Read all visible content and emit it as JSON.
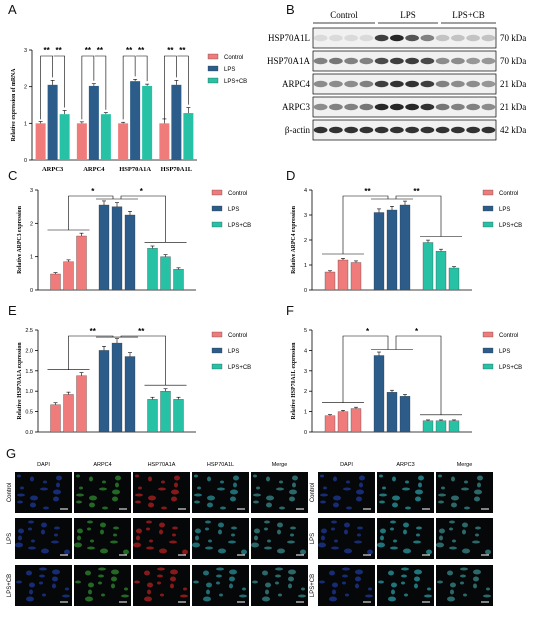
{
  "colors": {
    "control": "#f07b7b",
    "lps": "#2c5d8a",
    "lpscb": "#27c2a5"
  },
  "panels": {
    "a": "A",
    "b": "B",
    "c": "C",
    "d": "D",
    "e": "E",
    "f": "F",
    "g": "G"
  },
  "legend": [
    "Control",
    "LPS",
    "LPS+CB"
  ],
  "chart_data": [
    {
      "id": "A",
      "type": "bar",
      "ylabel": "Relative expression of mRNA",
      "ylim": [
        0,
        3
      ],
      "yticks": [
        "0",
        "1",
        "2",
        "3"
      ],
      "categories": [
        "ARPC3",
        "ARPC4",
        "HSP70A1A",
        "HSP70A1L"
      ],
      "series": [
        {
          "name": "Control",
          "values": [
            1.0,
            1.0,
            1.0,
            1.0
          ],
          "err": [
            0.05,
            0.04,
            0.03,
            0.12
          ]
        },
        {
          "name": "LPS",
          "values": [
            2.05,
            2.02,
            2.15,
            2.05
          ],
          "err": [
            0.12,
            0.06,
            0.05,
            0.12
          ]
        },
        {
          "name": "LPS+CB",
          "values": [
            1.25,
            1.25,
            2.02,
            1.28
          ],
          "err": [
            0.1,
            0.04,
            0.05,
            0.15
          ]
        }
      ],
      "sig": [
        "**",
        "**",
        "**",
        "**",
        "**",
        "**",
        "**",
        "**"
      ]
    },
    {
      "id": "C",
      "type": "bar",
      "ylabel": "Relative ARPC3 expression",
      "ylim": [
        0,
        3
      ],
      "yticks": [
        "0",
        "1",
        "2",
        "3"
      ],
      "series": [
        {
          "name": "Control",
          "values": [
            0.48,
            0.85,
            1.62
          ]
        },
        {
          "name": "LPS",
          "values": [
            2.55,
            2.5,
            2.25
          ]
        },
        {
          "name": "LPS+CB",
          "values": [
            1.25,
            1.0,
            0.62
          ]
        }
      ],
      "sig": [
        "*",
        "*"
      ]
    },
    {
      "id": "D",
      "type": "bar",
      "ylabel": "Relative ARPC4 expression",
      "ylim": [
        0,
        4
      ],
      "yticks": [
        "0",
        "1",
        "2",
        "3",
        "4"
      ],
      "series": [
        {
          "name": "Control",
          "values": [
            0.72,
            1.2,
            1.1
          ]
        },
        {
          "name": "LPS",
          "values": [
            3.1,
            3.2,
            3.4
          ]
        },
        {
          "name": "LPS+CB",
          "values": [
            1.9,
            1.55,
            0.88
          ]
        }
      ],
      "sig": [
        "**",
        "**"
      ]
    },
    {
      "id": "E",
      "type": "bar",
      "ylabel": "Relative HSP70A1A expression",
      "ylim": [
        0,
        2.5
      ],
      "yticks": [
        "0.0",
        "0.5",
        "1.0",
        "1.5",
        "2.0",
        "2.5"
      ],
      "series": [
        {
          "name": "Control",
          "values": [
            0.67,
            0.92,
            1.38
          ]
        },
        {
          "name": "LPS",
          "values": [
            2.0,
            2.18,
            1.85
          ]
        },
        {
          "name": "LPS+CB",
          "values": [
            0.8,
            1.0,
            0.8
          ]
        }
      ],
      "sig": [
        "**",
        "**"
      ]
    },
    {
      "id": "F",
      "type": "bar",
      "ylabel": "Relative HSP70A1L expression",
      "ylim": [
        0,
        5
      ],
      "yticks": [
        "0",
        "1",
        "2",
        "3",
        "4",
        "5"
      ],
      "series": [
        {
          "name": "Control",
          "values": [
            0.8,
            1.0,
            1.15
          ]
        },
        {
          "name": "LPS",
          "values": [
            3.75,
            1.95,
            1.75
          ]
        },
        {
          "name": "LPS+CB",
          "values": [
            0.55,
            0.55,
            0.55
          ]
        }
      ],
      "sig": [
        "*",
        "*"
      ]
    }
  ],
  "western": {
    "groups": [
      "Control",
      "LPS",
      "LPS+CB"
    ],
    "rows": [
      {
        "label": "HSP70A1L",
        "kda": "70 kDa"
      },
      {
        "label": "HSP70A1A",
        "kda": "70 kDa"
      },
      {
        "label": "ARPC4",
        "kda": "21 kDa"
      },
      {
        "label": "ARPC3",
        "kda": "21 kDa"
      },
      {
        "label": "β-actin",
        "kda": "42 kDa"
      }
    ]
  },
  "if": {
    "left_headers": [
      "DAPI",
      "ARPC4",
      "HSP70A1A",
      "HSP70A1L",
      "Merge"
    ],
    "right_headers": [
      "DAPI",
      "ARPC3",
      "Merge"
    ],
    "rows": [
      "Control",
      "LPS",
      "LPS+CB"
    ]
  }
}
